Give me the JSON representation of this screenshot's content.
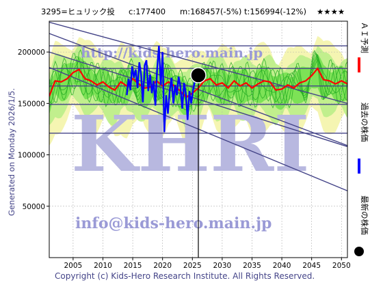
{
  "header": {
    "code": "3295=ヒュリック投",
    "current": "c:177400",
    "mid": "m:168457(-5%)",
    "target": "t:156994(-12%)",
    "stars": "★★★★"
  },
  "generated_label": "Generated on Monday 2026/1/5.",
  "copyright": "Copyright (c) Kids-Hero Research Institute. All Rights Reserved.",
  "watermarks": {
    "top": "http://kids-hero.main.jp",
    "big": "KHRI",
    "email": "info@kids-hero.main.jp"
  },
  "legend": [
    {
      "label": "ＡＩ予測",
      "color": "#ff0000",
      "marker": "line"
    },
    {
      "label": "過去の株価",
      "color": "#0000ff",
      "marker": "line"
    },
    {
      "label": "最新の株価",
      "color": "#000000",
      "marker": "dot"
    }
  ],
  "chart_data": {
    "type": "line",
    "xlim": [
      2001,
      2051
    ],
    "ylim": [
      0,
      230000
    ],
    "x_ticks": [
      2005,
      2010,
      2015,
      2020,
      2025,
      2030,
      2035,
      2040,
      2045,
      2050
    ],
    "y_ticks": [
      50000,
      100000,
      150000,
      200000
    ],
    "grid": true,
    "colors": {
      "ai": "#ff0000",
      "past": "#0000ff",
      "latest": "#000000",
      "band_green": "#66dd44",
      "band_light": "#bbee88",
      "band_yellow": "#f4f4aa",
      "trend": "#444488"
    },
    "latest_point": {
      "x": 2026.0,
      "y": 177400
    },
    "hlines": [
      206000,
      184000,
      167000,
      149000,
      121000
    ],
    "trend_lines": [
      {
        "x": [
          2001,
          2051
        ],
        "y": [
          229000,
          150000
        ]
      },
      {
        "x": [
          2001,
          2051
        ],
        "y": [
          218000,
          109000
        ]
      },
      {
        "x": [
          2001,
          2051
        ],
        "y": [
          200000,
          108000
        ]
      },
      {
        "x": [
          2001,
          2051
        ],
        "y": [
          185000,
          65000
        ]
      }
    ],
    "series": [
      {
        "name": "ＡＩ予測",
        "x": [
          2001,
          2002,
          2003,
          2004,
          2005,
          2006,
          2007,
          2008,
          2009,
          2010,
          2011,
          2012,
          2013,
          2014,
          2015,
          2016,
          2017,
          2018,
          2019,
          2020,
          2021,
          2022,
          2023,
          2024,
          2025,
          2026,
          2027,
          2028,
          2029,
          2030,
          2031,
          2032,
          2033,
          2034,
          2035,
          2036,
          2037,
          2038,
          2039,
          2040,
          2041,
          2042,
          2043,
          2044,
          2045,
          2046,
          2047,
          2048,
          2049,
          2050,
          2051
        ],
        "values": [
          157000,
          172000,
          171000,
          174000,
          180000,
          183000,
          174000,
          172000,
          168000,
          171000,
          166000,
          163000,
          171000,
          167000,
          174000,
          169000,
          165000,
          166000,
          172000,
          167000,
          171000,
          167000,
          162000,
          156000,
          160000,
          165000,
          172000,
          174000,
          168000,
          170000,
          165000,
          172000,
          167000,
          170000,
          165000,
          169000,
          172000,
          171000,
          163000,
          164000,
          168000,
          165000,
          170000,
          172000,
          177000,
          184000,
          173000,
          172000,
          169000,
          172000,
          169000
        ]
      },
      {
        "name": "過去の株価",
        "x": [
          2014.0,
          2014.3,
          2014.6,
          2014.9,
          2015.2,
          2015.5,
          2015.8,
          2016.1,
          2016.4,
          2016.7,
          2017.0,
          2017.3,
          2017.6,
          2017.9,
          2018.2,
          2018.5,
          2018.8,
          2019.1,
          2019.4,
          2019.7,
          2020.0,
          2020.3,
          2020.6,
          2020.9,
          2021.2,
          2021.5,
          2021.8,
          2022.1,
          2022.4,
          2022.7,
          2023.0,
          2023.3,
          2023.6,
          2023.9,
          2024.2,
          2024.5,
          2024.8,
          2025.1,
          2025.4
        ],
        "values": [
          158000,
          174000,
          163000,
          186000,
          175000,
          183000,
          165000,
          190000,
          178000,
          151000,
          187000,
          192000,
          162000,
          178000,
          160000,
          172000,
          148000,
          184000,
          206000,
          168000,
          200000,
          122000,
          158000,
          140000,
          162000,
          175000,
          150000,
          168000,
          158000,
          176000,
          166000,
          145000,
          170000,
          160000,
          134000,
          162000,
          150000,
          163000,
          171000
        ]
      }
    ]
  }
}
